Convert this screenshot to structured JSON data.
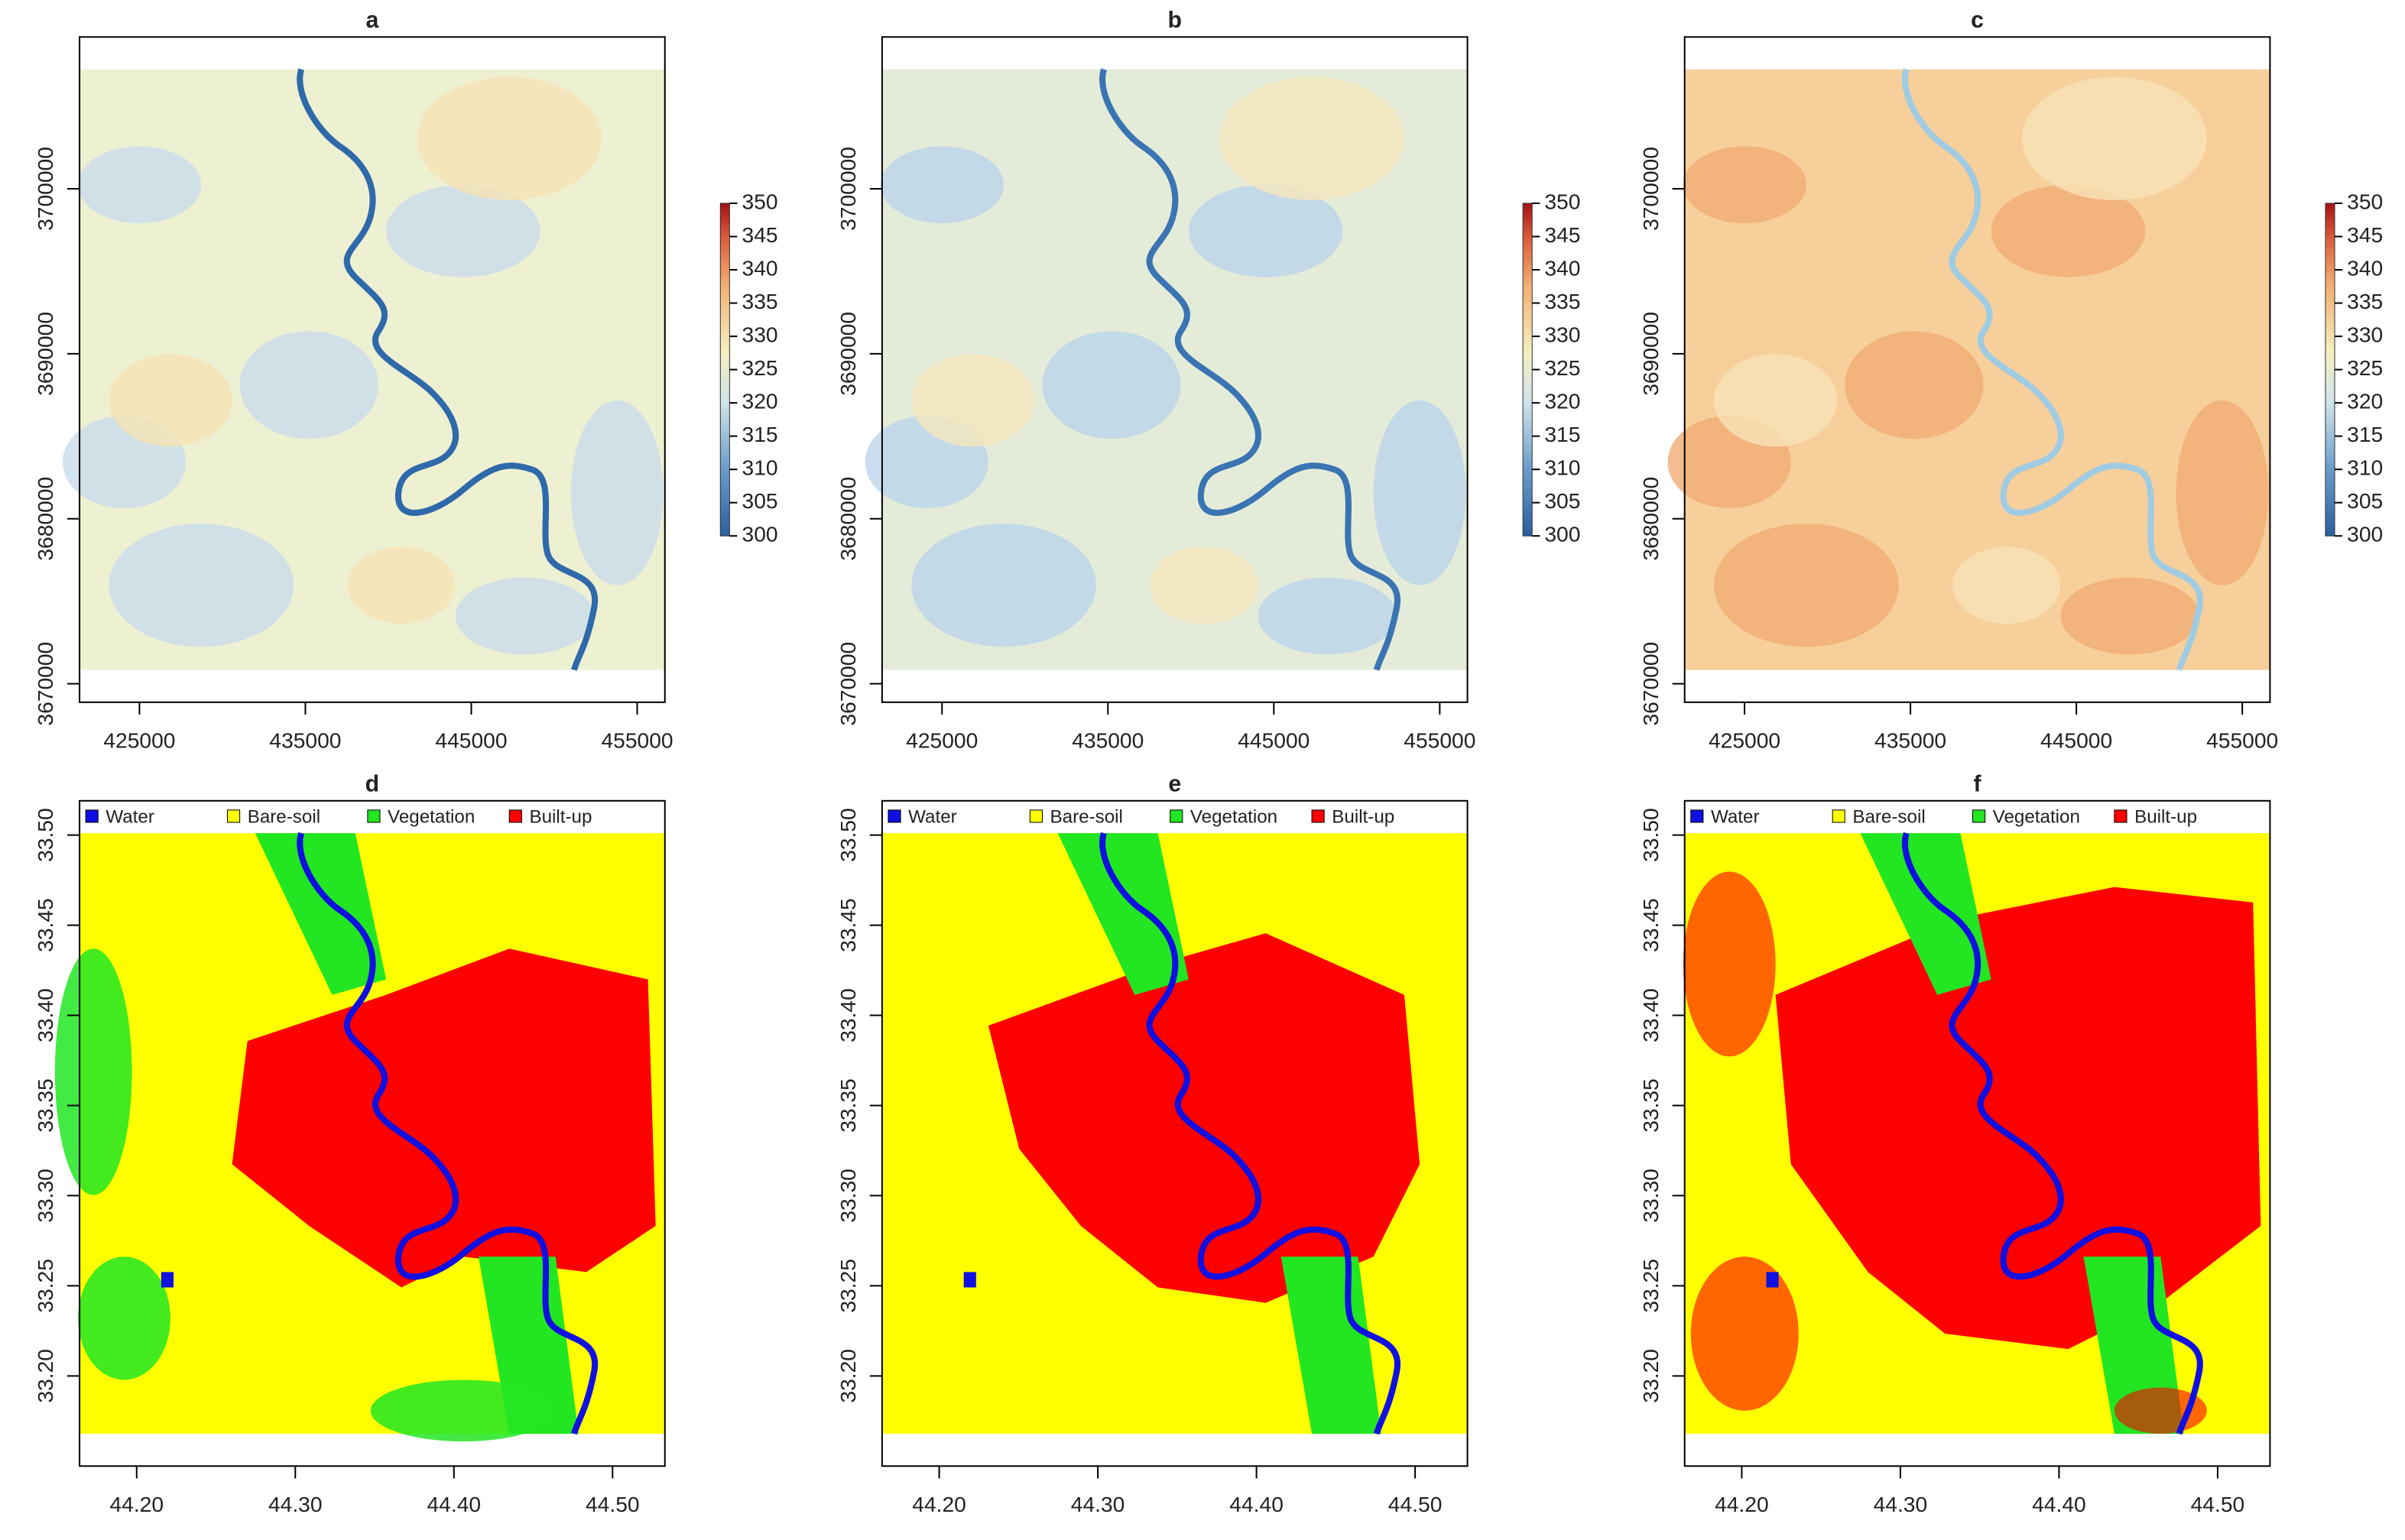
{
  "colorbar": {
    "lim": [
      300,
      350
    ],
    "ticks": [
      300,
      305,
      310,
      315,
      320,
      325,
      330,
      335,
      340,
      345,
      350
    ]
  },
  "legend": [
    {
      "label": "Water",
      "color": "#1010e0"
    },
    {
      "label": "Bare-soil",
      "color": "#ffff00"
    },
    {
      "label": "Vegetation",
      "color": "#22e622"
    },
    {
      "label": "Built-up",
      "color": "#ff0000"
    }
  ],
  "panels": [
    {
      "title": "a",
      "kind": "temperature",
      "xlim": [
        421390,
        456670
      ],
      "ylim": [
        3668880,
        3709200
      ],
      "xticks": [
        425000,
        435000,
        445000,
        455000
      ],
      "yticks": [
        3670000,
        3680000,
        3690000,
        3700000
      ]
    },
    {
      "title": "b",
      "kind": "temperature",
      "xlim": [
        421390,
        456670
      ],
      "ylim": [
        3668880,
        3709200
      ],
      "xticks": [
        425000,
        435000,
        445000,
        455000
      ],
      "yticks": [
        3670000,
        3680000,
        3690000,
        3700000
      ]
    },
    {
      "title": "c",
      "kind": "temperature",
      "xlim": [
        421390,
        456670
      ],
      "ylim": [
        3668880,
        3709200
      ],
      "xticks": [
        425000,
        435000,
        445000,
        455000
      ],
      "yticks": [
        3670000,
        3680000,
        3690000,
        3700000
      ]
    },
    {
      "title": "d",
      "kind": "landcover",
      "xlim": [
        44.164,
        44.533
      ],
      "ylim": [
        33.15,
        33.519
      ],
      "xticks": [
        {
          "value": 44.2,
          "label": "44.20"
        },
        {
          "value": 44.3,
          "label": "44.30"
        },
        {
          "value": 44.4,
          "label": "44.40"
        },
        {
          "value": 44.5,
          "label": "44.50"
        }
      ],
      "yticks": [
        {
          "value": 33.2,
          "label": "33.20"
        },
        {
          "value": 33.25,
          "label": "33.25"
        },
        {
          "value": 33.3,
          "label": "33.30"
        },
        {
          "value": 33.35,
          "label": "33.35"
        },
        {
          "value": 33.4,
          "label": "33.40"
        },
        {
          "value": 33.45,
          "label": "33.45"
        },
        {
          "value": 33.5,
          "label": "33.50"
        }
      ]
    },
    {
      "title": "e",
      "kind": "landcover",
      "xlim": [
        44.164,
        44.533
      ],
      "ylim": [
        33.15,
        33.519
      ],
      "xticks": [
        {
          "value": 44.2,
          "label": "44.20"
        },
        {
          "value": 44.3,
          "label": "44.30"
        },
        {
          "value": 44.4,
          "label": "44.40"
        },
        {
          "value": 44.5,
          "label": "44.50"
        }
      ],
      "yticks": [
        {
          "value": 33.2,
          "label": "33.20"
        },
        {
          "value": 33.25,
          "label": "33.25"
        },
        {
          "value": 33.3,
          "label": "33.30"
        },
        {
          "value": 33.35,
          "label": "33.35"
        },
        {
          "value": 33.4,
          "label": "33.40"
        },
        {
          "value": 33.45,
          "label": "33.45"
        },
        {
          "value": 33.5,
          "label": "33.50"
        }
      ]
    },
    {
      "title": "f",
      "kind": "landcover",
      "xlim": [
        44.164,
        44.533
      ],
      "ylim": [
        33.15,
        33.519
      ],
      "xticks": [
        {
          "value": 44.2,
          "label": "44.20"
        },
        {
          "value": 44.3,
          "label": "44.30"
        },
        {
          "value": 44.4,
          "label": "44.40"
        },
        {
          "value": 44.5,
          "label": "44.50"
        }
      ],
      "yticks": [
        {
          "value": 33.2,
          "label": "33.20"
        },
        {
          "value": 33.25,
          "label": "33.25"
        },
        {
          "value": 33.3,
          "label": "33.30"
        },
        {
          "value": 33.35,
          "label": "33.35"
        },
        {
          "value": 33.4,
          "label": "33.40"
        },
        {
          "value": 33.45,
          "label": "33.45"
        },
        {
          "value": 33.5,
          "label": "33.50"
        }
      ]
    }
  ]
}
